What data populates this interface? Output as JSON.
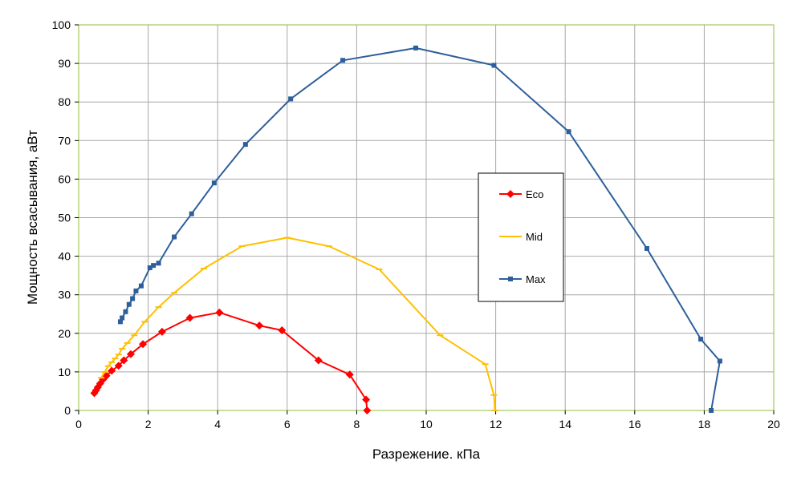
{
  "chart_data": {
    "type": "line",
    "xlabel": "Разрежение. кПа",
    "ylabel": "Мощность всасывания, аВт",
    "xlim": [
      0,
      20
    ],
    "ylim": [
      0,
      100
    ],
    "x_ticks": [
      0,
      2,
      4,
      6,
      8,
      10,
      12,
      14,
      16,
      18,
      20
    ],
    "y_ticks": [
      0,
      10,
      20,
      30,
      40,
      50,
      60,
      70,
      80,
      90,
      100
    ],
    "grid": true,
    "plot_background": "#ffffff",
    "grid_color": "#a8a8a8",
    "plot_border_color": "#8fbc3a",
    "legend_position": "center-right",
    "series": [
      {
        "name": "Eco",
        "color": "#ff0000",
        "marker": "diamond",
        "x": [
          0.45,
          0.5,
          0.55,
          0.62,
          0.7,
          0.8,
          0.95,
          1.15,
          1.3,
          1.5,
          1.85,
          2.4,
          3.2,
          4.05,
          5.2,
          5.85,
          6.9,
          7.8,
          8.27,
          8.3
        ],
        "y": [
          4.5,
          5.2,
          6.0,
          7.0,
          8.0,
          9.0,
          10.3,
          11.6,
          13.0,
          14.6,
          17.2,
          20.4,
          24.0,
          25.4,
          22.0,
          20.8,
          13.0,
          9.3,
          2.8,
          0
        ]
      },
      {
        "name": "Mid",
        "color": "#ffc000",
        "marker": "dash",
        "x": [
          0.65,
          0.75,
          0.85,
          0.95,
          1.05,
          1.15,
          1.25,
          1.4,
          1.6,
          1.9,
          2.3,
          2.75,
          3.6,
          4.7,
          6.0,
          7.2,
          8.65,
          10.4,
          11.7,
          11.95,
          11.98
        ],
        "y": [
          8.5,
          10.0,
          11.5,
          12.5,
          13.5,
          14.5,
          16.0,
          17.5,
          19.5,
          23.0,
          26.8,
          30.5,
          36.8,
          42.6,
          44.8,
          42.6,
          36.6,
          19.5,
          12.0,
          4.0,
          0
        ]
      },
      {
        "name": "Max",
        "color": "#2e5f9a",
        "marker": "square",
        "x": [
          1.2,
          1.25,
          1.35,
          1.45,
          1.55,
          1.65,
          1.8,
          2.05,
          2.15,
          2.3,
          2.75,
          3.25,
          3.9,
          4.8,
          6.1,
          7.6,
          9.7,
          11.95,
          14.1,
          16.35,
          17.9,
          18.45,
          18.2
        ],
        "y": [
          23.0,
          24.0,
          25.6,
          27.5,
          29.0,
          31.0,
          32.3,
          37.0,
          37.6,
          38.2,
          45.0,
          51.0,
          59.0,
          69.0,
          80.8,
          90.8,
          94.0,
          89.5,
          72.3,
          42.0,
          18.5,
          12.8,
          0
        ]
      }
    ]
  }
}
